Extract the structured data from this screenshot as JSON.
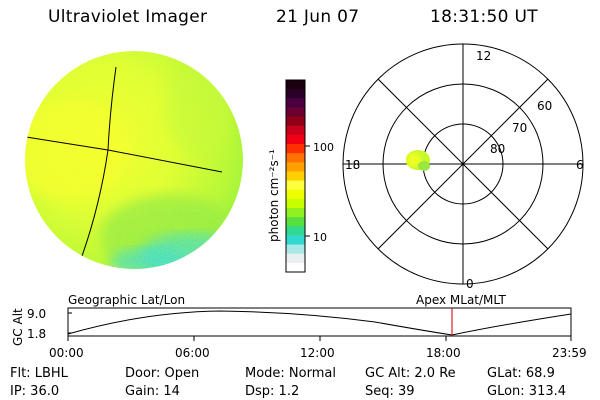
{
  "header": {
    "instrument": "Ultraviolet Imager",
    "date": "21 Jun 07",
    "time": "18:31:50 UT"
  },
  "colorbar": {
    "unit_label": "photon cm⁻²s⁻¹",
    "tick_labels": [
      "100",
      "10"
    ],
    "colors": [
      "#1a0010",
      "#2a0028",
      "#4a0040",
      "#6a0030",
      "#900018",
      "#c8001c",
      "#f00010",
      "#ff3000",
      "#ff7000",
      "#ffa000",
      "#ffd000",
      "#ffff40",
      "#f0ff00",
      "#c8ff00",
      "#90f020",
      "#58e040",
      "#30d890",
      "#30d8d0",
      "#a8e8e8",
      "#e8f0f0",
      "#ffffff"
    ]
  },
  "polar_plot": {
    "mlt_labels": [
      "12",
      "18",
      "6",
      "0"
    ],
    "mlat_labels": [
      "60",
      "70",
      "80"
    ]
  },
  "timeline": {
    "ylabel": "GC Alt",
    "ytick_labels": [
      "9.0",
      "1.8"
    ],
    "title_left": "Geographic Lat/Lon",
    "title_right": "Apex  MLat/MLT",
    "xtick_labels": [
      "00:00",
      "06:00",
      "12:00",
      "18:00",
      "23:59"
    ]
  },
  "footer": {
    "row1": [
      {
        "key": "flt",
        "text": "Flt: LBHL"
      },
      {
        "key": "door",
        "text": "Door: Open"
      },
      {
        "key": "mode",
        "text": "Mode: Normal"
      },
      {
        "key": "gcalt",
        "text": "GC Alt: 2.0 Re"
      },
      {
        "key": "glat",
        "text": "GLat:  68.9"
      }
    ],
    "row2": [
      {
        "key": "ip",
        "text": "IP: 36.0"
      },
      {
        "key": "gain",
        "text": "Gain: 14"
      },
      {
        "key": "dsp",
        "text": "Dsp:    1.2"
      },
      {
        "key": "seq",
        "text": "Seq: 39"
      },
      {
        "key": "glon",
        "text": "GLon: 313.4"
      }
    ]
  },
  "colors": {
    "image_main": "#d8ff30",
    "image_yellow": "#f4ff2a",
    "image_green": "#9cf038",
    "image_cyan": "#40e0c8",
    "marker_red": "#e02020"
  }
}
